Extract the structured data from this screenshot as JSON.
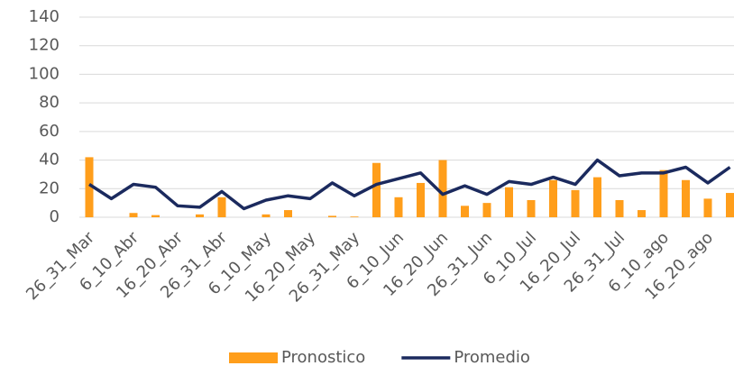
{
  "chart_data": {
    "type": "bar-line",
    "categories": [
      "26_31_Mar",
      null,
      "6_10_Abr",
      null,
      "16_20_Abr",
      null,
      "26_31_Abr",
      null,
      "6_10_May",
      null,
      "16_20_May",
      null,
      "26_31_May",
      null,
      "6_10_Jun",
      null,
      "16_20_Jun",
      null,
      "26_31_Jun",
      null,
      "6_10_Jul",
      null,
      "16_20_Jul",
      null,
      "26_31_Jul",
      null,
      "6_10_ago",
      null,
      "16_20_ago",
      null
    ],
    "series": [
      {
        "name": "Pronostico",
        "type": "bar",
        "color": "#ff9e1b",
        "values": [
          42,
          0,
          3,
          1.5,
          0,
          2,
          14,
          0,
          2,
          5,
          0,
          1,
          0.5,
          38,
          14,
          24,
          40,
          8,
          10,
          21,
          12,
          26,
          19,
          28,
          12,
          5,
          33,
          26,
          13,
          17
        ]
      },
      {
        "name": "Promedio",
        "type": "line",
        "color": "#1b2a5e",
        "values": [
          23,
          13,
          23,
          21,
          8,
          7,
          18,
          6,
          12,
          15,
          13,
          24,
          15,
          23,
          27,
          31,
          16,
          22,
          16,
          25,
          23,
          28,
          23,
          40,
          29,
          31,
          31,
          35,
          24,
          35
        ]
      }
    ],
    "ylim": [
      0,
      140
    ],
    "yticks": [
      0,
      20,
      40,
      60,
      80,
      100,
      120,
      140
    ],
    "grid": true,
    "legend": "bottom"
  }
}
